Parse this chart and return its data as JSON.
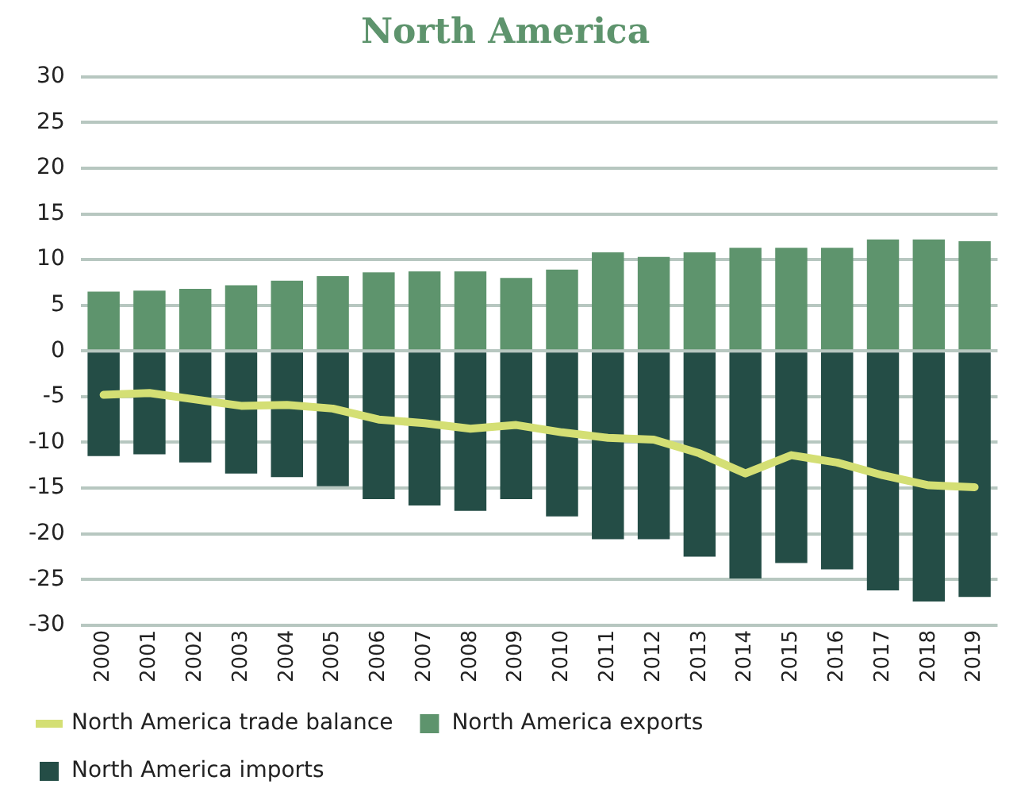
{
  "chart_data": {
    "type": "bar",
    "title": "North America",
    "categories": [
      "2000",
      "2001",
      "2002",
      "2003",
      "2004",
      "2005",
      "2006",
      "2007",
      "2008",
      "2009",
      "2010",
      "2011",
      "2012",
      "2013",
      "2014",
      "2015",
      "2016",
      "2017",
      "2018",
      "2019"
    ],
    "series": [
      {
        "name": "North America exports",
        "color": "#5e946d",
        "values": [
          6.5,
          6.6,
          6.8,
          7.2,
          7.7,
          8.2,
          8.6,
          8.7,
          8.7,
          8.0,
          8.9,
          10.8,
          10.3,
          10.8,
          11.3,
          11.3,
          11.3,
          12.2,
          12.2,
          12.0
        ]
      },
      {
        "name": "North America imports",
        "color": "#244d46",
        "values": [
          -11.5,
          -11.3,
          -12.2,
          -13.4,
          -13.8,
          -14.8,
          -16.2,
          -16.9,
          -17.5,
          -16.2,
          -18.1,
          -20.6,
          -20.6,
          -22.5,
          -24.9,
          -23.2,
          -23.9,
          -26.2,
          -27.4,
          -26.9
        ]
      },
      {
        "name": "North America trade balance",
        "type": "line",
        "color": "#d4df74",
        "values": [
          -4.8,
          -4.6,
          -5.3,
          -6.0,
          -5.9,
          -6.3,
          -7.5,
          -7.9,
          -8.5,
          -8.1,
          -8.9,
          -9.5,
          -9.7,
          -11.2,
          -13.4,
          -11.4,
          -12.2,
          -13.6,
          -14.7,
          -14.9
        ]
      }
    ],
    "stacked": true,
    "ylim": [
      -30,
      30
    ],
    "yticks": [
      -30,
      -25,
      -20,
      -15,
      -10,
      -5,
      0,
      5,
      10,
      15,
      20,
      25,
      30
    ],
    "grid": "y",
    "legend": "bottom",
    "marker": "none"
  }
}
